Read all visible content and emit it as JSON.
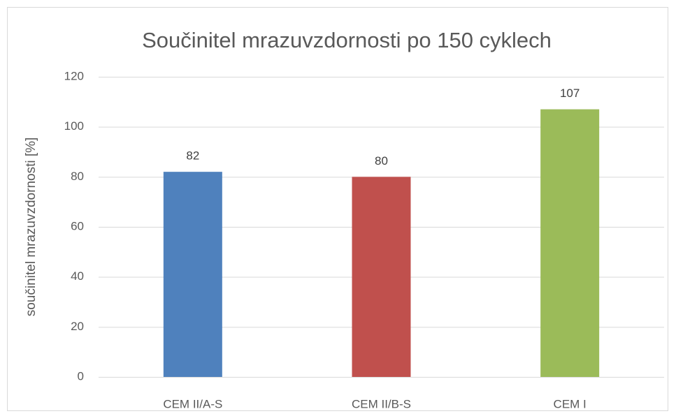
{
  "chart_data": {
    "type": "bar",
    "title": "Součinitel mrazuvzdornosti po 150 cyklech",
    "ylabel": "součinitel mrazuvzdornosti [%]",
    "categories": [
      "CEM II/A-S",
      "CEM II/B-S",
      "CEM I"
    ],
    "values": [
      82,
      80,
      107
    ],
    "colors": [
      "#4f81bd",
      "#c0504d",
      "#9bbb59"
    ],
    "ylim": [
      0,
      120
    ],
    "yticks": [
      0,
      20,
      40,
      60,
      80,
      100,
      120
    ],
    "grid": true
  }
}
